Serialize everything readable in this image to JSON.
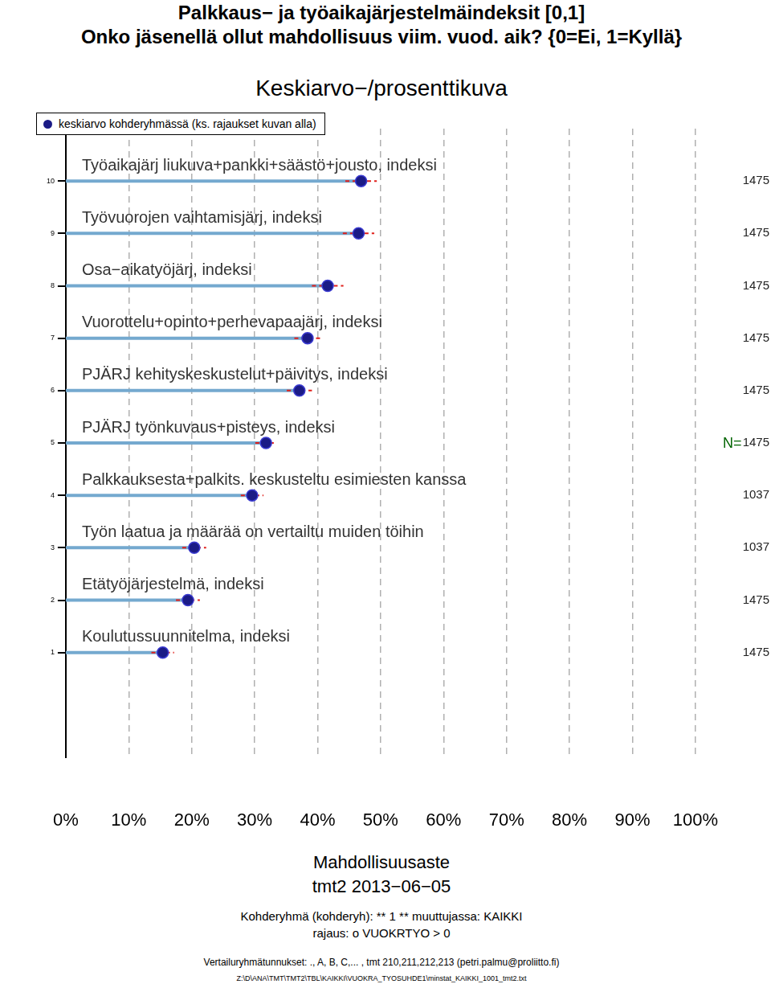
{
  "chart_data": {
    "type": "bar",
    "orientation": "horizontal",
    "title": [
      "Palkkaus− ja työaikajärjestelmäindeksit [0,1]",
      "Onko jäsenellä ollut mahdollisuus viim. vuod. aik? {0=Ei, 1=Kyllä}"
    ],
    "subtitle": "Keskiarvo−/prosenttikuva",
    "x_label": "Mahdollisuusaste",
    "notes": [
      "tmt2 2013−06−05",
      "Kohderyhmä (kohderyh): ** 1 ** muuttujassa: KAIKKI",
      "rajaus: o VUOKRTYO > 0",
      "Vertailuryhmätunnukset: ., A, B, C,... , tmt 210,211,212,213 (petri.palmu@proliitto.fi)",
      "Z:\\D\\ANA\\TMT\\TMT2\\TBL\\KAIKKI\\VUOKRA_TYOSUHDE1\\minstat_KAIKKI_1001_tmt2.txt"
    ],
    "categories": [
      "Työaikajärj liukuva+pankki+säästö+jousto, indeksi",
      "Työvuorojen vaihtamisjärj, indeksi",
      "Osa−aikatyöjärj, indeksi",
      "Vuorottelu+opinto+perhevapaajärj, indeksi",
      "PJÄRJ kehityskeskustelut+päivitys, indeksi",
      "PJÄRJ työnkuvaus+pisteys, indeksi",
      "Palkkauksesta+palkits. keskusteltu esimiesten kanssa",
      "Työn laatua ja määrää on vertailtu muiden töihin",
      "Etätyöjärjestelmä, indeksi",
      "Koulutussuunnitelma, indeksi"
    ],
    "y": [
      10,
      9,
      8,
      7,
      6,
      5,
      4,
      3,
      2,
      1
    ],
    "series": [
      {
        "name": "keskiarvo kohderyhmässä (ks. rajaukset kuvan alla)",
        "color": "#1b1b86",
        "marker": "circle",
        "values": [
          46.9,
          46.5,
          41.6,
          38.4,
          37.1,
          31.8,
          29.6,
          20.4,
          19.4,
          15.4
        ],
        "errors": [
          2.5,
          2.5,
          2.5,
          2.1,
          2.0,
          1.7,
          1.8,
          1.9,
          1.9,
          1.8
        ]
      }
    ],
    "n_label": "N=",
    "n": [
      1475,
      1475,
      1475,
      1475,
      1475,
      1475,
      1037,
      1037,
      1475,
      1475
    ],
    "xlim": [
      0,
      100
    ],
    "xticks": [
      {
        "value": 0,
        "label": "0%"
      },
      {
        "value": 10,
        "label": "10%"
      },
      {
        "value": 20,
        "label": "20%"
      },
      {
        "value": 30,
        "label": "30%"
      },
      {
        "value": 40,
        "label": "40%"
      },
      {
        "value": 50,
        "label": "50%"
      },
      {
        "value": 60,
        "label": "60%"
      },
      {
        "value": 70,
        "label": "70%"
      },
      {
        "value": 80,
        "label": "80%"
      },
      {
        "value": 90,
        "label": "90%"
      },
      {
        "value": 100,
        "label": "100%"
      }
    ],
    "ylim": [
      -1,
      11
    ],
    "yticks": [
      1,
      2,
      3,
      4,
      5,
      6,
      7,
      8,
      9,
      10
    ],
    "grid": true,
    "legend": "top-left"
  }
}
